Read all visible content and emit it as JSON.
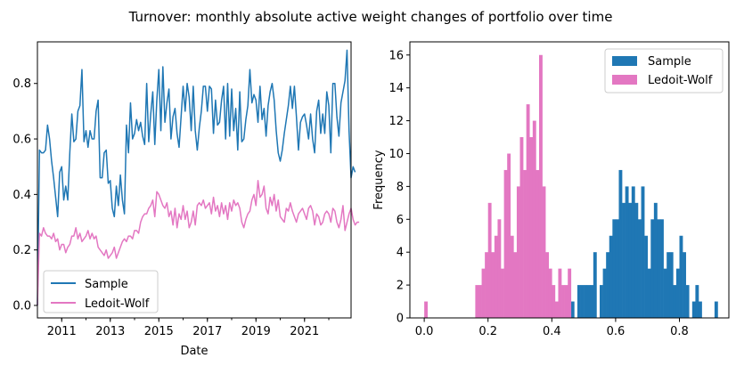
{
  "figure": {
    "title": "Turnover: monthly absolute active weight changes of portfolio over time"
  },
  "colors": {
    "sample": "#1f77b4",
    "ledoit": "#e377c2"
  },
  "chart_data": [
    {
      "type": "line",
      "title": "",
      "xlabel": "Date",
      "ylabel": "",
      "x_start": "2010-01",
      "x_end": "2022-12",
      "x_frequency": "monthly",
      "xticks_major": [
        "2011",
        "2013",
        "2015",
        "2017",
        "2019",
        "2021"
      ],
      "yticks": [
        "0.0",
        "0.2",
        "0.4",
        "0.6",
        "0.8"
      ],
      "ylim": [
        -0.045,
        0.95
      ],
      "grid": false,
      "legend": "lower-left",
      "series": [
        {
          "name": "Sample",
          "color": "#1f77b4",
          "values": [
            0.0,
            0.56,
            0.55,
            0.55,
            0.56,
            0.65,
            0.6,
            0.52,
            0.46,
            0.39,
            0.32,
            0.48,
            0.5,
            0.38,
            0.43,
            0.38,
            0.55,
            0.69,
            0.59,
            0.6,
            0.7,
            0.72,
            0.85,
            0.59,
            0.63,
            0.57,
            0.63,
            0.6,
            0.6,
            0.7,
            0.74,
            0.46,
            0.46,
            0.55,
            0.56,
            0.44,
            0.45,
            0.35,
            0.32,
            0.43,
            0.36,
            0.47,
            0.38,
            0.33,
            0.65,
            0.55,
            0.73,
            0.6,
            0.62,
            0.67,
            0.63,
            0.66,
            0.61,
            0.58,
            0.8,
            0.59,
            0.69,
            0.77,
            0.58,
            0.74,
            0.85,
            0.63,
            0.86,
            0.66,
            0.73,
            0.78,
            0.6,
            0.68,
            0.71,
            0.62,
            0.57,
            0.68,
            0.79,
            0.7,
            0.8,
            0.75,
            0.63,
            0.79,
            0.63,
            0.56,
            0.64,
            0.7,
            0.79,
            0.79,
            0.7,
            0.79,
            0.78,
            0.62,
            0.74,
            0.65,
            0.66,
            0.74,
            0.79,
            0.6,
            0.8,
            0.61,
            0.78,
            0.63,
            0.71,
            0.56,
            0.77,
            0.59,
            0.6,
            0.67,
            0.72,
            0.85,
            0.73,
            0.76,
            0.74,
            0.66,
            0.79,
            0.67,
            0.71,
            0.61,
            0.72,
            0.77,
            0.8,
            0.74,
            0.63,
            0.55,
            0.52,
            0.56,
            0.62,
            0.67,
            0.72,
            0.79,
            0.71,
            0.79,
            0.68,
            0.56,
            0.66,
            0.68,
            0.69,
            0.65,
            0.6,
            0.69,
            0.6,
            0.55,
            0.7,
            0.74,
            0.62,
            0.69,
            0.62,
            0.77,
            0.72,
            0.55,
            0.8,
            0.8,
            0.68,
            0.61,
            0.73,
            0.77,
            0.81,
            0.92,
            0.63,
            0.46,
            0.5,
            0.48
          ]
        },
        {
          "name": "Ledoit-Wolf",
          "color": "#e377c2",
          "values": [
            0.0,
            0.26,
            0.25,
            0.28,
            0.26,
            0.25,
            0.25,
            0.24,
            0.26,
            0.23,
            0.24,
            0.2,
            0.22,
            0.22,
            0.19,
            0.21,
            0.22,
            0.25,
            0.25,
            0.28,
            0.24,
            0.26,
            0.23,
            0.24,
            0.25,
            0.27,
            0.24,
            0.26,
            0.24,
            0.25,
            0.21,
            0.2,
            0.19,
            0.18,
            0.2,
            0.17,
            0.18,
            0.19,
            0.21,
            0.17,
            0.19,
            0.21,
            0.23,
            0.24,
            0.23,
            0.25,
            0.25,
            0.24,
            0.27,
            0.27,
            0.26,
            0.3,
            0.32,
            0.33,
            0.33,
            0.35,
            0.36,
            0.38,
            0.32,
            0.41,
            0.4,
            0.38,
            0.36,
            0.35,
            0.37,
            0.32,
            0.34,
            0.29,
            0.35,
            0.28,
            0.33,
            0.31,
            0.36,
            0.31,
            0.34,
            0.28,
            0.3,
            0.34,
            0.29,
            0.36,
            0.37,
            0.36,
            0.38,
            0.35,
            0.36,
            0.37,
            0.33,
            0.39,
            0.34,
            0.36,
            0.32,
            0.37,
            0.33,
            0.36,
            0.31,
            0.37,
            0.34,
            0.38,
            0.36,
            0.37,
            0.35,
            0.3,
            0.28,
            0.31,
            0.33,
            0.34,
            0.38,
            0.4,
            0.36,
            0.45,
            0.39,
            0.4,
            0.43,
            0.35,
            0.33,
            0.39,
            0.36,
            0.4,
            0.34,
            0.38,
            0.32,
            0.31,
            0.3,
            0.35,
            0.34,
            0.37,
            0.34,
            0.32,
            0.3,
            0.33,
            0.34,
            0.35,
            0.33,
            0.31,
            0.35,
            0.36,
            0.34,
            0.29,
            0.33,
            0.32,
            0.29,
            0.3,
            0.33,
            0.34,
            0.33,
            0.3,
            0.35,
            0.34,
            0.3,
            0.28,
            0.31,
            0.36,
            0.27,
            0.3,
            0.33,
            0.35,
            0.31,
            0.29,
            0.3,
            0.3
          ]
        }
      ]
    },
    {
      "type": "histogram",
      "title": "",
      "xlabel": "",
      "ylabel": "Frequency",
      "xticks": [
        "0.0",
        "0.2",
        "0.4",
        "0.6",
        "0.8"
      ],
      "yticks": [
        "0",
        "2",
        "4",
        "6",
        "8",
        "10",
        "12",
        "14",
        "16"
      ],
      "xlim": [
        -0.045,
        0.955
      ],
      "ylim": [
        0,
        16.8
      ],
      "grid": false,
      "legend": "top-right",
      "bin_width": 0.01,
      "series": [
        {
          "name": "Sample",
          "color": "#1f77b4",
          "bins": [
            [
              0.46,
              1
            ],
            [
              0.48,
              2
            ],
            [
              0.49,
              2
            ],
            [
              0.5,
              2
            ],
            [
              0.51,
              2
            ],
            [
              0.52,
              2
            ],
            [
              0.53,
              4
            ],
            [
              0.55,
              2
            ],
            [
              0.56,
              3
            ],
            [
              0.57,
              4
            ],
            [
              0.58,
              5
            ],
            [
              0.59,
              6
            ],
            [
              0.6,
              6
            ],
            [
              0.61,
              9
            ],
            [
              0.62,
              7
            ],
            [
              0.63,
              8
            ],
            [
              0.64,
              7
            ],
            [
              0.65,
              8
            ],
            [
              0.66,
              7
            ],
            [
              0.67,
              6
            ],
            [
              0.68,
              8
            ],
            [
              0.69,
              5
            ],
            [
              0.7,
              3
            ],
            [
              0.71,
              6
            ],
            [
              0.72,
              7
            ],
            [
              0.73,
              6
            ],
            [
              0.74,
              6
            ],
            [
              0.75,
              3
            ],
            [
              0.76,
              4
            ],
            [
              0.77,
              4
            ],
            [
              0.78,
              2
            ],
            [
              0.79,
              3
            ],
            [
              0.8,
              5
            ],
            [
              0.81,
              4
            ],
            [
              0.82,
              2
            ],
            [
              0.84,
              1
            ],
            [
              0.85,
              2
            ],
            [
              0.86,
              1
            ],
            [
              0.91,
              1
            ]
          ]
        },
        {
          "name": "Ledoit-Wolf",
          "color": "#e377c2",
          "bins": [
            [
              0.0,
              1
            ],
            [
              0.16,
              2
            ],
            [
              0.17,
              2
            ],
            [
              0.18,
              3
            ],
            [
              0.19,
              4
            ],
            [
              0.2,
              7
            ],
            [
              0.21,
              4
            ],
            [
              0.22,
              5
            ],
            [
              0.23,
              6
            ],
            [
              0.24,
              3
            ],
            [
              0.25,
              9
            ],
            [
              0.26,
              10
            ],
            [
              0.27,
              5
            ],
            [
              0.28,
              4
            ],
            [
              0.29,
              8
            ],
            [
              0.3,
              11
            ],
            [
              0.31,
              9
            ],
            [
              0.32,
              13
            ],
            [
              0.33,
              11
            ],
            [
              0.34,
              12
            ],
            [
              0.35,
              9
            ],
            [
              0.36,
              16
            ],
            [
              0.37,
              8
            ],
            [
              0.38,
              4
            ],
            [
              0.39,
              3
            ],
            [
              0.4,
              2
            ],
            [
              0.41,
              1
            ],
            [
              0.42,
              3
            ],
            [
              0.43,
              2
            ],
            [
              0.44,
              2
            ],
            [
              0.45,
              3
            ]
          ]
        }
      ]
    }
  ]
}
